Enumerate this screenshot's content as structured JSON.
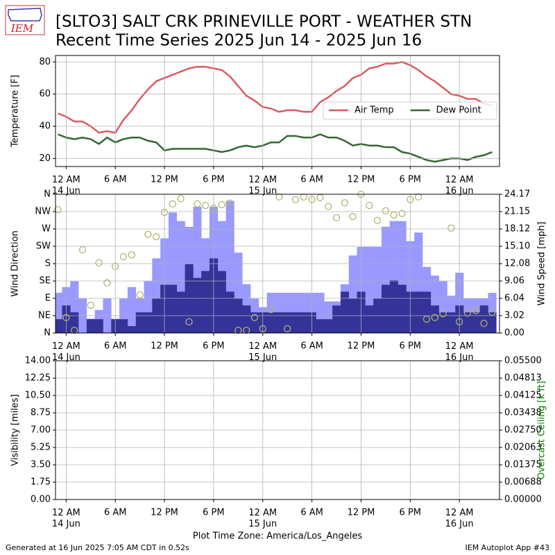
{
  "title": "[SLTO3] SALT CRK  PRINEVILLE PORT - WEATHER STN",
  "subtitle": "Recent Time Series 2025 Jun 14 - 2025 Jun 16",
  "logo_text": "IEM",
  "footer_left": "Generated at 16 Jun 2025 7:05 AM CDT in 0.52s",
  "footer_right": "IEM Autoplot App #43",
  "chart_data": [
    {
      "type": "line",
      "ylabel": "Temperature [F]",
      "grid": true,
      "legend": "center right",
      "x": [
        -1,
        0,
        1,
        2,
        3,
        4,
        5,
        6,
        7,
        8,
        9,
        10,
        11,
        12,
        13,
        14,
        15,
        16,
        17,
        18,
        19,
        20,
        21,
        22,
        23,
        24,
        25,
        26,
        27,
        28,
        29,
        30,
        31,
        32,
        33,
        34,
        35,
        36,
        37,
        38,
        39,
        40,
        41,
        42,
        43,
        44,
        45,
        46,
        47,
        48,
        49,
        50,
        51,
        52
      ],
      "xlim": [
        -1.3,
        52.9
      ],
      "xticks": [
        {
          "value": 0,
          "label": "12 AM\n14 Jun"
        },
        {
          "value": 6,
          "label": "6 AM"
        },
        {
          "value": 12,
          "label": "12 PM"
        },
        {
          "value": 18,
          "label": "6 PM"
        },
        {
          "value": 24,
          "label": "12 AM\n15 Jun"
        },
        {
          "value": 30,
          "label": "6 AM"
        },
        {
          "value": 36,
          "label": "12 PM"
        },
        {
          "value": 42,
          "label": "6 PM"
        },
        {
          "value": 48,
          "label": "12 AM\n16 Jun"
        }
      ],
      "ylim": [
        15,
        84
      ],
      "yticks": [
        20,
        40,
        60,
        80
      ],
      "series": [
        {
          "name": "Air Temp",
          "color": "#da5a60",
          "values": [
            48,
            46,
            43,
            43,
            40,
            36,
            37,
            36,
            44,
            50,
            57,
            63,
            68,
            70,
            72,
            74,
            76,
            77,
            77,
            76,
            75,
            71,
            65,
            59,
            56,
            52,
            51,
            49,
            50,
            50,
            49,
            49,
            55,
            58,
            62,
            65,
            70,
            72,
            76,
            77,
            79,
            79,
            80,
            78,
            75,
            71,
            68,
            64,
            60,
            59,
            57,
            57,
            54,
            53
          ]
        },
        {
          "name": "Dew Point",
          "color": "#336633",
          "values": [
            35,
            33,
            32,
            33,
            32,
            29,
            33,
            30,
            32,
            33,
            33,
            31,
            30,
            25,
            26,
            26,
            26,
            26,
            26,
            25,
            24,
            25,
            27,
            28,
            27,
            28,
            30,
            30,
            34,
            34,
            33,
            33,
            35,
            33,
            33,
            31,
            28,
            29,
            28,
            28,
            27,
            27,
            24,
            23,
            21,
            19,
            18,
            19,
            20,
            20,
            19,
            21,
            22,
            24
          ]
        }
      ]
    },
    {
      "type": "combo",
      "ylabel": "Wind Direction",
      "y2label": "Wind Speed [mph]",
      "grid": true,
      "x": [
        -1,
        0,
        1,
        2,
        3,
        4,
        5,
        6,
        7,
        8,
        9,
        10,
        11,
        12,
        13,
        14,
        15,
        16,
        17,
        18,
        19,
        20,
        21,
        22,
        23,
        24,
        25,
        26,
        27,
        28,
        29,
        30,
        31,
        32,
        33,
        34,
        35,
        36,
        37,
        38,
        39,
        40,
        41,
        42,
        43,
        44,
        45,
        46,
        47,
        48,
        49,
        50,
        51,
        52
      ],
      "xlim": [
        -1.3,
        52.9
      ],
      "xticks": [
        {
          "value": 0,
          "label": "12 AM\n14 Jun"
        },
        {
          "value": 6,
          "label": "6 AM"
        },
        {
          "value": 12,
          "label": "12 PM"
        },
        {
          "value": 18,
          "label": "6 PM"
        },
        {
          "value": 24,
          "label": "12 AM\n15 Jun"
        },
        {
          "value": 30,
          "label": "6 AM"
        },
        {
          "value": 36,
          "label": "12 PM"
        },
        {
          "value": 42,
          "label": "6 PM"
        },
        {
          "value": 48,
          "label": "12 AM\n16 Jun"
        }
      ],
      "ylim": [
        0,
        360
      ],
      "yticks": [
        {
          "value": 0,
          "label": "N"
        },
        {
          "value": 45,
          "label": "NE"
        },
        {
          "value": 90,
          "label": "E"
        },
        {
          "value": 135,
          "label": "SE"
        },
        {
          "value": 180,
          "label": "S"
        },
        {
          "value": 225,
          "label": "SW"
        },
        {
          "value": 270,
          "label": "W"
        },
        {
          "value": 315,
          "label": "NW"
        },
        {
          "value": 360,
          "label": "N"
        }
      ],
      "y2lim": [
        0,
        24.17
      ],
      "y2ticks": [
        {
          "value": 0,
          "label": "0.00"
        },
        3.02,
        6.04,
        9.06,
        12.08,
        {
          "value": 15.1,
          "label": "15.10"
        },
        18.12,
        21.15,
        24.17
      ],
      "series": [
        {
          "kind": "bar",
          "axis": "y2",
          "color": "#9999ff",
          "values": [
            7,
            8,
            9,
            6,
            2.5,
            4,
            6,
            2.5,
            6,
            8,
            6,
            9,
            13,
            16.5,
            21,
            19.5,
            18.5,
            22,
            16.5,
            22,
            19.5,
            23,
            14,
            8.5,
            6,
            4.5,
            7,
            7,
            7,
            7,
            7,
            7,
            7,
            5.5,
            5.5,
            8.5,
            13.5,
            15,
            15,
            15,
            18.5,
            19.5,
            19.5,
            16,
            17.5,
            11.5,
            10,
            9,
            6.5,
            10.5,
            6,
            6,
            6,
            7
          ]
        },
        {
          "kind": "bar",
          "axis": "y2",
          "color": "#333399",
          "values": [
            2.4,
            4.8,
            3.6,
            0,
            2.4,
            2.4,
            0,
            2.4,
            2.4,
            1.2,
            3.6,
            3.6,
            6,
            8.4,
            8.4,
            7.2,
            12,
            9.6,
            10.8,
            13,
            10.8,
            7.2,
            6,
            4.8,
            3.6,
            3.6,
            3.6,
            3.6,
            3.6,
            3.6,
            3.6,
            3.6,
            2.4,
            2.4,
            4.8,
            7.2,
            6,
            7.2,
            4.8,
            6,
            8.4,
            9.2,
            8.4,
            7.2,
            7.2,
            7.2,
            4.8,
            3.6,
            3.6,
            4.8,
            3.6,
            3.6,
            4.8,
            3.6
          ]
        },
        {
          "kind": "scatter",
          "color": "#b3b36e",
          "values": [
            320,
            40,
            7,
            216,
            72,
            182,
            130,
            173,
            198,
            203,
            99,
            256,
            250,
            313,
            335,
            349,
            29,
            335,
            331,
            324,
            333,
            337,
            7,
            7,
            40,
            11,
            61,
            353,
            11,
            346,
            353,
            346,
            351,
            328,
            299,
            338,
            302,
            360,
            331,
            292,
            317,
            306,
            310,
            346,
            353,
            36,
            40,
            50,
            272,
            29,
            52,
            58,
            25,
            54
          ]
        }
      ]
    },
    {
      "type": "line",
      "ylabel": "Visibility [miles]",
      "y2label": "Overcast Ceiling [k ft]",
      "y2label_color": "green",
      "xlabel": "Plot Time Zone: America/Los_Angeles",
      "grid": true,
      "xlim": [
        -1.3,
        52.9
      ],
      "xticks": [
        {
          "value": 0,
          "label": "12 AM\n14 Jun"
        },
        {
          "value": 6,
          "label": "6 AM"
        },
        {
          "value": 12,
          "label": "12 PM"
        },
        {
          "value": 18,
          "label": "6 PM"
        },
        {
          "value": 24,
          "label": "12 AM\n15 Jun"
        },
        {
          "value": 30,
          "label": "6 AM"
        },
        {
          "value": 36,
          "label": "12 PM"
        },
        {
          "value": 42,
          "label": "6 PM"
        },
        {
          "value": 48,
          "label": "12 AM\n16 Jun"
        }
      ],
      "ylim": [
        0,
        14
      ],
      "yticks": [
        {
          "value": 0,
          "label": "0.00"
        },
        1.75,
        {
          "value": 3.5,
          "label": "3.50"
        },
        5.25,
        {
          "value": 7,
          "label": "7.00"
        },
        8.75,
        {
          "value": 10.5,
          "label": "10.50"
        },
        12.25,
        {
          "value": 14,
          "label": "14.00"
        }
      ],
      "y2lim": [
        0,
        0.055
      ],
      "y2ticks": [
        {
          "value": 0,
          "label": "0.00000"
        },
        {
          "value": 0.006875,
          "label": "0.00688"
        },
        {
          "value": 0.01375,
          "label": "0.01375"
        },
        {
          "value": 0.020625,
          "label": "0.02063"
        },
        {
          "value": 0.0275,
          "label": "0.02750"
        },
        {
          "value": 0.034375,
          "label": "0.03438"
        },
        {
          "value": 0.04125,
          "label": "0.04125"
        },
        {
          "value": 0.048125,
          "label": "0.04813"
        },
        {
          "value": 0.055,
          "label": "0.05500"
        }
      ],
      "series": []
    }
  ]
}
